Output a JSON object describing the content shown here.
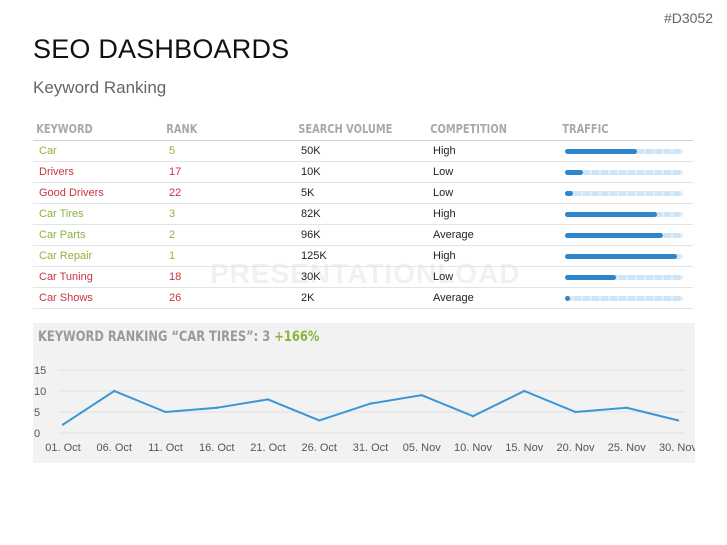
{
  "header": {
    "tag": "#D3052",
    "title": "SEO DASHBOARDS",
    "subtitle": "Keyword Ranking"
  },
  "watermark": "PRESENTATIONLOAD",
  "table": {
    "columns": [
      "KEYWORD",
      "RANK",
      "SEARCH VOLUME",
      "COMPETITION",
      "TRAFFIC"
    ],
    "rows": [
      {
        "keyword": "Car",
        "rank": "5",
        "volume": "50K",
        "competition": "High",
        "traffic": 0.61,
        "color": "green"
      },
      {
        "keyword": "Drivers",
        "rank": "17",
        "volume": "10K",
        "competition": "Low",
        "traffic": 0.15,
        "color": "red"
      },
      {
        "keyword": "Good Drivers",
        "rank": "22",
        "volume": "5K",
        "competition": "Low",
        "traffic": 0.07,
        "color": "red"
      },
      {
        "keyword": "Car Tires",
        "rank": "3",
        "volume": "82K",
        "competition": "High",
        "traffic": 0.78,
        "color": "green"
      },
      {
        "keyword": "Car Parts",
        "rank": "2",
        "volume": "96K",
        "competition": "Average",
        "traffic": 0.83,
        "color": "green"
      },
      {
        "keyword": "Car Repair",
        "rank": "1",
        "volume": "125K",
        "competition": "High",
        "traffic": 0.95,
        "color": "green"
      },
      {
        "keyword": "Car Tuning",
        "rank": "18",
        "volume": "30K",
        "competition": "Low",
        "traffic": 0.43,
        "color": "red"
      },
      {
        "keyword": "Car Shows",
        "rank": "26",
        "volume": "2K",
        "competition": "Average",
        "traffic": 0.04,
        "color": "red"
      }
    ]
  },
  "chart_heading": {
    "label": "KEYWORD RANKING “CAR TIRES”: 3",
    "change": "+166%"
  },
  "colors": {
    "line": "#3a97d6",
    "green": "#8db33c",
    "red": "#c8343f",
    "bar": "#2e86cc"
  },
  "chart_data": {
    "type": "line",
    "x": [
      "01. Oct",
      "06. Oct",
      "11. Oct",
      "16. Oct",
      "21. Oct",
      "26. Oct",
      "31. Oct",
      "05. Nov",
      "10. Nov",
      "15. Nov",
      "20. Nov",
      "25. Nov",
      "30. Nov"
    ],
    "values": [
      2,
      10,
      5,
      6,
      8,
      3,
      7,
      9,
      4,
      10,
      5,
      6,
      3
    ],
    "yticks": [
      0,
      5,
      10,
      15
    ],
    "ylim": [
      0,
      15
    ],
    "grid": "horizontal"
  }
}
